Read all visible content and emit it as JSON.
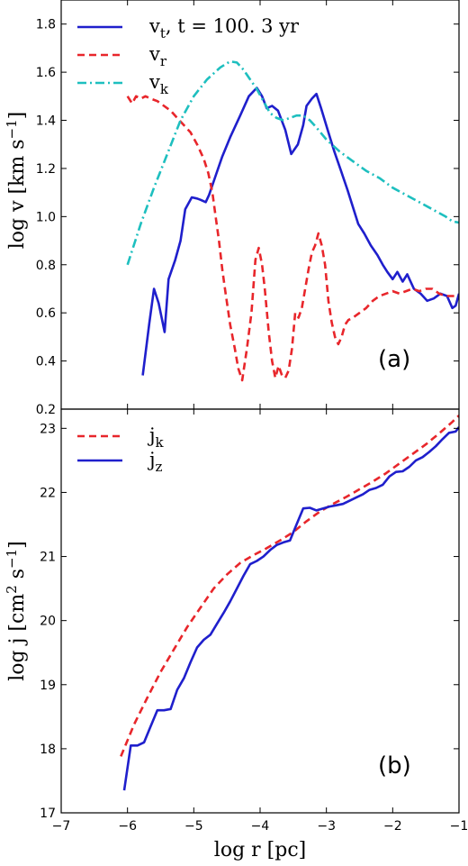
{
  "chart_data": [
    {
      "type": "line",
      "panel_label": "(a)",
      "xlim": [
        -7,
        -1
      ],
      "ylim": [
        0.2,
        1.9
      ],
      "xticks": [
        -7,
        -6,
        -5,
        -4,
        -3,
        -2,
        -1
      ],
      "yticks": [
        0.2,
        0.4,
        0.6,
        0.8,
        1.0,
        1.2,
        1.4,
        1.6,
        1.8
      ],
      "ytick_labels": [
        "0.2",
        "0.4",
        "0.6",
        "0.8",
        "1.0",
        "1.2",
        "1.4",
        "1.6",
        "1.8"
      ],
      "ylabel": {
        "base": "log v [km s",
        "sup": "−1",
        "tail": "]"
      },
      "legend_position": "upper-left",
      "series": [
        {
          "key": "vt",
          "legend": {
            "main": "v",
            "sub": "t",
            "rest": ", t = 100. 3 yr"
          },
          "color": "#1f1fcc",
          "dash": "solid",
          "x": [
            -5.77,
            -5.67,
            -5.6,
            -5.53,
            -5.44,
            -5.38,
            -5.28,
            -5.2,
            -5.13,
            -5.03,
            -4.95,
            -4.9,
            -4.82,
            -4.77,
            -4.67,
            -4.57,
            -4.45,
            -4.3,
            -4.17,
            -4.05,
            -3.97,
            -3.9,
            -3.82,
            -3.73,
            -3.62,
            -3.53,
            -3.43,
            -3.35,
            -3.3,
            -3.22,
            -3.15,
            -3.08,
            -2.98,
            -2.88,
            -2.78,
            -2.68,
            -2.6,
            -2.52,
            -2.43,
            -2.33,
            -2.23,
            -2.15,
            -2.08,
            -2.0,
            -1.93,
            -1.85,
            -1.78,
            -1.68,
            -1.58,
            -1.48,
            -1.38,
            -1.28,
            -1.18,
            -1.1,
            -1.05,
            -1.0
          ],
          "y": [
            0.34,
            0.56,
            0.7,
            0.64,
            0.52,
            0.74,
            0.82,
            0.9,
            1.03,
            1.08,
            1.075,
            1.07,
            1.06,
            1.09,
            1.17,
            1.25,
            1.33,
            1.42,
            1.5,
            1.535,
            1.5,
            1.45,
            1.46,
            1.44,
            1.36,
            1.26,
            1.3,
            1.38,
            1.46,
            1.49,
            1.51,
            1.45,
            1.36,
            1.27,
            1.19,
            1.11,
            1.04,
            0.97,
            0.93,
            0.88,
            0.84,
            0.8,
            0.77,
            0.74,
            0.77,
            0.73,
            0.76,
            0.7,
            0.68,
            0.65,
            0.66,
            0.68,
            0.67,
            0.62,
            0.63,
            0.68
          ]
        },
        {
          "key": "vr",
          "legend": {
            "main": "v",
            "sub": "r",
            "rest": ""
          },
          "color": "#e8262b",
          "dash": "dashed",
          "x": [
            -6.0,
            -5.93,
            -5.87,
            -5.8,
            -5.73,
            -5.65,
            -5.55,
            -5.45,
            -5.35,
            -5.25,
            -5.15,
            -5.05,
            -4.95,
            -4.85,
            -4.78,
            -4.72,
            -4.67,
            -4.62,
            -4.57,
            -4.52,
            -4.45,
            -4.38,
            -4.33,
            -4.27,
            -4.2,
            -4.13,
            -4.07,
            -4.02,
            -3.97,
            -3.93,
            -3.87,
            -3.82,
            -3.77,
            -3.72,
            -3.67,
            -3.62,
            -3.57,
            -3.52,
            -3.47,
            -3.42,
            -3.37,
            -3.32,
            -3.27,
            -3.22,
            -3.17,
            -3.12,
            -3.07,
            -3.02,
            -2.97,
            -2.92,
            -2.87,
            -2.82,
            -2.77,
            -2.72,
            -2.67,
            -2.6,
            -2.5,
            -2.4,
            -2.3,
            -2.2,
            -2.1,
            -2.0,
            -1.9,
            -1.8,
            -1.7,
            -1.6,
            -1.5,
            -1.4,
            -1.3,
            -1.2,
            -1.1,
            -1.0
          ],
          "y": [
            1.5,
            1.47,
            1.5,
            1.49,
            1.5,
            1.49,
            1.48,
            1.46,
            1.44,
            1.41,
            1.38,
            1.35,
            1.3,
            1.24,
            1.18,
            1.1,
            1.0,
            0.9,
            0.78,
            0.68,
            0.55,
            0.45,
            0.37,
            0.32,
            0.45,
            0.6,
            0.82,
            0.87,
            0.8,
            0.7,
            0.52,
            0.4,
            0.33,
            0.38,
            0.34,
            0.33,
            0.36,
            0.45,
            0.6,
            0.58,
            0.62,
            0.7,
            0.78,
            0.85,
            0.88,
            0.93,
            0.88,
            0.8,
            0.65,
            0.56,
            0.5,
            0.47,
            0.5,
            0.55,
            0.57,
            0.58,
            0.6,
            0.62,
            0.65,
            0.67,
            0.68,
            0.69,
            0.68,
            0.69,
            0.7,
            0.69,
            0.7,
            0.7,
            0.68,
            0.67,
            0.67,
            0.67
          ]
        },
        {
          "key": "vk",
          "legend": {
            "main": "v",
            "sub": "k",
            "rest": ""
          },
          "color": "#1ebfbf",
          "dash": "dashdot",
          "x": [
            -6.0,
            -5.8,
            -5.6,
            -5.4,
            -5.2,
            -5.0,
            -4.8,
            -4.6,
            -4.45,
            -4.35,
            -4.25,
            -4.15,
            -4.05,
            -3.95,
            -3.85,
            -3.75,
            -3.65,
            -3.55,
            -3.45,
            -3.35,
            -3.25,
            -3.15,
            -3.0,
            -2.8,
            -2.6,
            -2.4,
            -2.2,
            -2.0,
            -1.8,
            -1.6,
            -1.4,
            -1.2,
            -1.1,
            -1.0
          ],
          "y": [
            0.8,
            0.97,
            1.12,
            1.26,
            1.4,
            1.5,
            1.57,
            1.62,
            1.645,
            1.64,
            1.61,
            1.57,
            1.53,
            1.48,
            1.43,
            1.41,
            1.4,
            1.41,
            1.42,
            1.42,
            1.4,
            1.37,
            1.32,
            1.27,
            1.23,
            1.19,
            1.16,
            1.12,
            1.09,
            1.06,
            1.03,
            1.0,
            0.98,
            0.975
          ]
        }
      ]
    },
    {
      "type": "line",
      "panel_label": "(b)",
      "xlim": [
        -7,
        -1
      ],
      "ylim": [
        17,
        23.3
      ],
      "xticks": [
        -7,
        -6,
        -5,
        -4,
        -3,
        -2,
        -1
      ],
      "xtick_labels": [
        "−7",
        "−6",
        "−5",
        "−4",
        "−3",
        "−2",
        "−1"
      ],
      "yticks": [
        17,
        18,
        19,
        20,
        21,
        22,
        23
      ],
      "ytick_labels": [
        "17",
        "18",
        "19",
        "20",
        "21",
        "22",
        "23"
      ],
      "xlabel": "log r [pc]",
      "ylabel": {
        "base": "log j [cm",
        "sup": "2",
        "mid": " s",
        "sup2": "−1",
        "tail": "]"
      },
      "legend_position": "upper-left",
      "series": [
        {
          "key": "jk",
          "legend": {
            "main": "j",
            "sub": "k",
            "rest": ""
          },
          "color": "#e8262b",
          "dash": "dashed",
          "x": [
            -6.1,
            -5.9,
            -5.7,
            -5.5,
            -5.3,
            -5.1,
            -4.9,
            -4.7,
            -4.5,
            -4.3,
            -4.1,
            -3.9,
            -3.7,
            -3.5,
            -3.3,
            -3.1,
            -2.9,
            -2.7,
            -2.5,
            -2.3,
            -2.1,
            -1.9,
            -1.7,
            -1.5,
            -1.3,
            -1.1,
            -1.0
          ],
          "y": [
            17.88,
            18.38,
            18.8,
            19.2,
            19.55,
            19.9,
            20.2,
            20.5,
            20.72,
            20.9,
            21.02,
            21.13,
            21.25,
            21.38,
            21.55,
            21.7,
            21.82,
            21.93,
            22.05,
            22.17,
            22.3,
            22.45,
            22.6,
            22.75,
            22.92,
            23.1,
            23.2
          ]
        },
        {
          "key": "jz",
          "legend": {
            "main": "j",
            "sub": "z",
            "rest": ""
          },
          "color": "#1f1fcc",
          "dash": "solid",
          "x": [
            -6.05,
            -5.95,
            -5.85,
            -5.75,
            -5.65,
            -5.55,
            -5.45,
            -5.35,
            -5.25,
            -5.15,
            -5.05,
            -4.95,
            -4.85,
            -4.75,
            -4.65,
            -4.55,
            -4.45,
            -4.35,
            -4.25,
            -4.15,
            -4.05,
            -3.95,
            -3.85,
            -3.75,
            -3.65,
            -3.55,
            -3.45,
            -3.35,
            -3.25,
            -3.15,
            -3.05,
            -2.95,
            -2.85,
            -2.75,
            -2.65,
            -2.55,
            -2.45,
            -2.35,
            -2.25,
            -2.15,
            -2.05,
            -1.95,
            -1.85,
            -1.75,
            -1.65,
            -1.55,
            -1.45,
            -1.35,
            -1.25,
            -1.15,
            -1.05,
            -1.0
          ],
          "y": [
            17.35,
            18.05,
            18.05,
            18.1,
            18.35,
            18.6,
            18.6,
            18.62,
            18.92,
            19.1,
            19.35,
            19.58,
            19.7,
            19.78,
            19.95,
            20.12,
            20.3,
            20.5,
            20.7,
            20.88,
            20.93,
            21.0,
            21.1,
            21.18,
            21.22,
            21.25,
            21.5,
            21.75,
            21.76,
            21.72,
            21.75,
            21.78,
            21.8,
            21.82,
            21.87,
            21.92,
            21.97,
            22.04,
            22.07,
            22.12,
            22.25,
            22.32,
            22.33,
            22.4,
            22.5,
            22.55,
            22.63,
            22.72,
            22.83,
            22.93,
            22.95,
            23.02
          ]
        }
      ]
    }
  ]
}
